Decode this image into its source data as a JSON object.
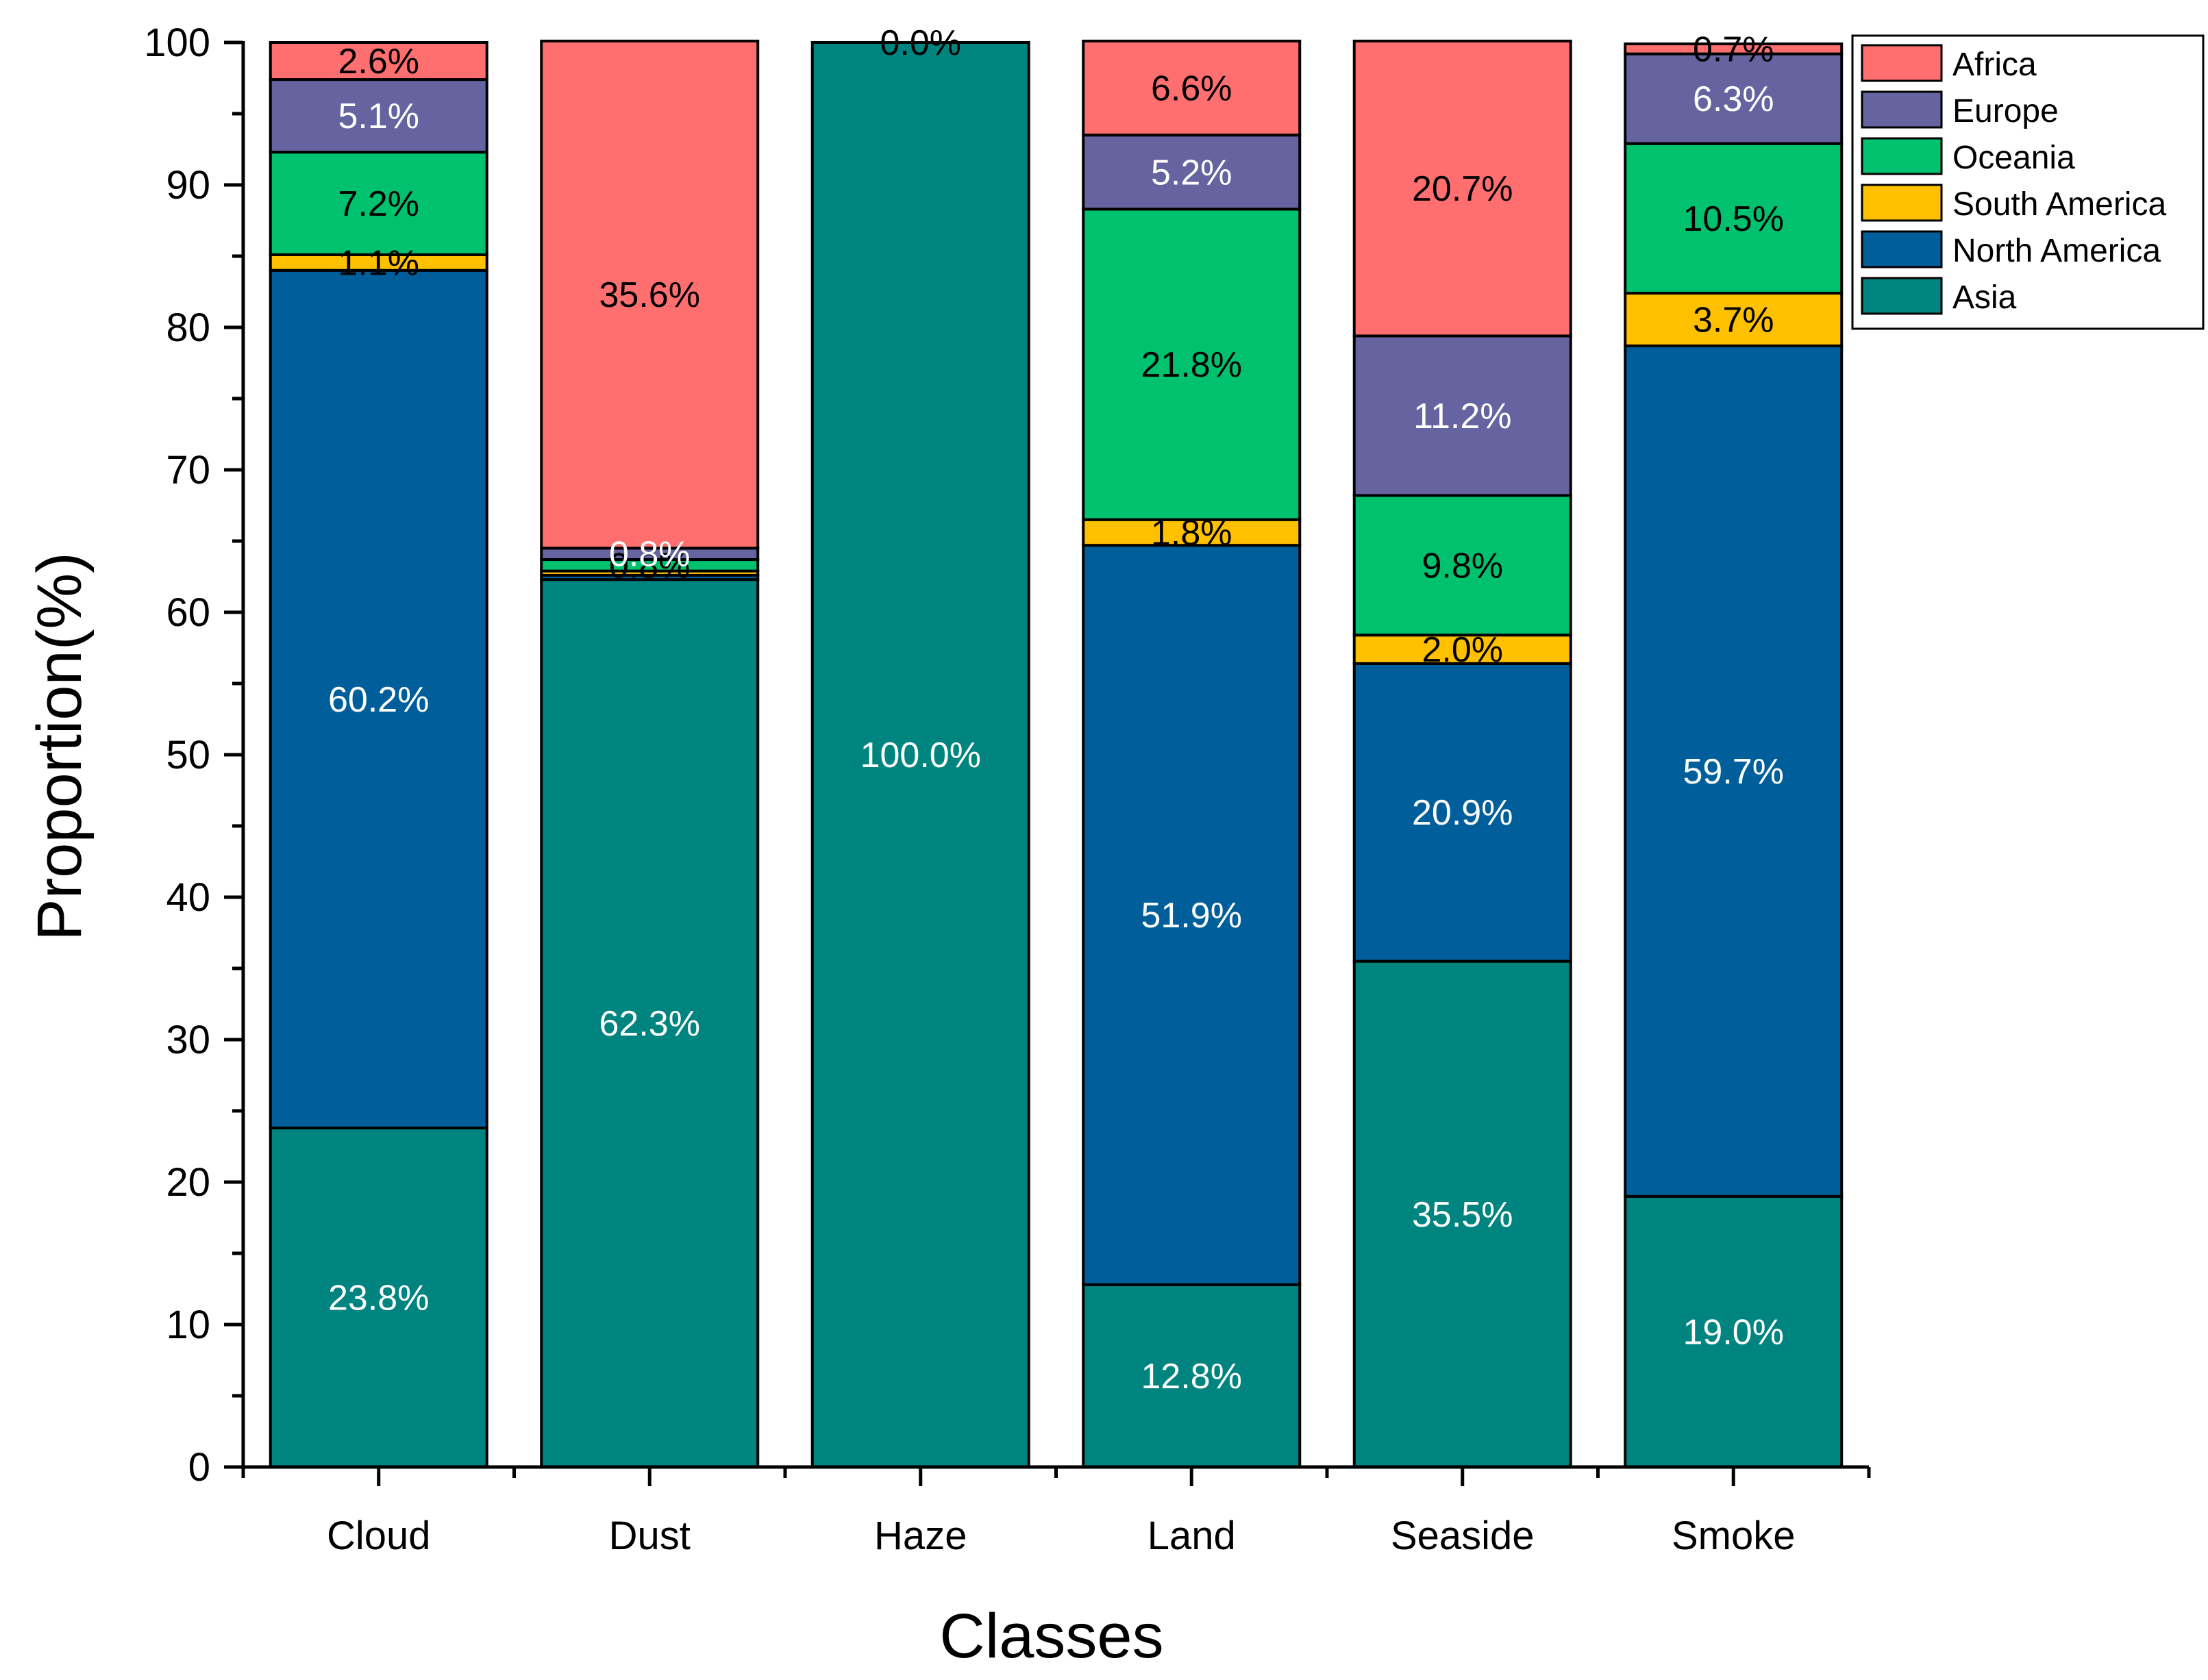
{
  "chart_data": {
    "type": "bar",
    "stacked": true,
    "title": "",
    "xlabel": "Classes",
    "ylabel": "Proportion(%)",
    "ylim": [
      0,
      100
    ],
    "yticks": [
      0,
      10,
      20,
      30,
      40,
      50,
      60,
      70,
      80,
      90,
      100
    ],
    "ytick_labels": [
      "0",
      "10",
      "20",
      "30",
      "40",
      "50",
      "60",
      "70",
      "80",
      "90",
      "100"
    ],
    "categories": [
      "Cloud",
      "Dust",
      "Haze",
      "Land",
      "Seaside",
      "Smoke"
    ],
    "series": [
      {
        "name": "Asia",
        "color": "#00847f",
        "label_color": "#ffffff",
        "values": [
          23.8,
          62.3,
          100.0,
          12.8,
          35.5,
          19.0
        ],
        "labels": [
          "23.8%",
          "62.3%",
          "100.0%",
          "12.8%",
          "35.5%",
          "19.0%"
        ]
      },
      {
        "name": "North America",
        "color": "#005f9b",
        "label_color": "#ffffff",
        "values": [
          60.2,
          0.3,
          0.0,
          51.9,
          20.9,
          59.7
        ],
        "labels": [
          "60.2%",
          "",
          "",
          "51.9%",
          "20.9%",
          "59.7%"
        ]
      },
      {
        "name": "South America",
        "color": "#ffc000",
        "label_color": "#000000",
        "values": [
          1.1,
          0.3,
          0.0,
          1.8,
          2.0,
          3.7
        ],
        "labels": [
          "1.1%",
          "",
          "",
          "1.8%",
          "2.0%",
          "3.7%"
        ]
      },
      {
        "name": "Oceania",
        "color": "#00c16e",
        "label_color": "#000000",
        "values": [
          7.2,
          0.8,
          0.0,
          21.8,
          9.8,
          10.5
        ],
        "labels": [
          "7.2%",
          "0.8%",
          "",
          "21.8%",
          "9.8%",
          "10.5%"
        ]
      },
      {
        "name": "Europe",
        "color": "#6563a0",
        "label_color": "#ffffff",
        "values": [
          5.1,
          0.8,
          0.0,
          5.2,
          11.2,
          6.3
        ],
        "labels": [
          "5.1%",
          "0.8%",
          "",
          "5.2%",
          "11.2%",
          "6.3%"
        ]
      },
      {
        "name": "Africa",
        "color": "#ff6f6f",
        "label_color": "#000000",
        "values": [
          2.6,
          35.6,
          0.0,
          6.6,
          20.7,
          0.7
        ],
        "labels": [
          "2.6%",
          "35.6%",
          "0.0%",
          "6.6%",
          "20.7%",
          "0.7%"
        ]
      }
    ],
    "legend": {
      "position": "top-right",
      "entries": [
        "Africa",
        "Europe",
        "Oceania",
        "South America",
        "North America",
        "Asia"
      ]
    }
  }
}
